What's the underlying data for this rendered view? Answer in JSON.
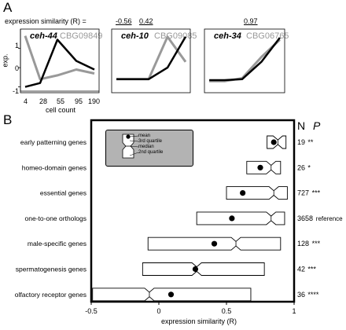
{
  "panel_a": {
    "letter": "A",
    "similarity_label": "expression similarity (R) =",
    "y_label": "exp.",
    "x_label": "cell count",
    "x_ticks": [
      "4",
      "28",
      "55",
      "95",
      "190"
    ],
    "y_ticks": [
      "1",
      "0",
      "-1"
    ],
    "plots": [
      {
        "r_value": "-0.56",
        "gene_black": "ceh-44",
        "gene_gray": "CBG09849",
        "black": [
          -1.0,
          -0.8,
          1.45,
          0.35,
          -0.1
        ],
        "gray": [
          1.65,
          -0.6,
          -0.4,
          -0.1,
          -0.3
        ]
      },
      {
        "r_value": "0.42",
        "gene_black": "ceh-10",
        "gene_gray": "CBG09085",
        "black": [
          -0.6,
          -0.6,
          -0.6,
          0.0,
          1.6
        ],
        "gray": [
          -0.6,
          -0.6,
          -0.6,
          1.6,
          0.3
        ]
      },
      {
        "r_value": "0.97",
        "gene_black": "ceh-34",
        "gene_gray": "CBG06765",
        "black": [
          -0.65,
          -0.65,
          -0.6,
          0.3,
          1.55
        ],
        "gray": [
          -0.7,
          -0.7,
          -0.55,
          0.55,
          1.45
        ]
      }
    ],
    "colors": {
      "black_line": "#000000",
      "gray_line": "#999999"
    }
  },
  "panel_b": {
    "letter": "B",
    "n_header": "N",
    "p_header": "P",
    "x_label": "expression similarity (R)",
    "x_ticks": [
      "-0.5",
      "0",
      "0.5",
      "1"
    ],
    "legend": {
      "mean": "mean",
      "q3": "3rd quartile",
      "median": "median",
      "q2": "2nd quartile"
    },
    "colors": {
      "legend_bg": "#b3b3b3",
      "box_fill": "#ffffff",
      "stroke": "#000000"
    }
  },
  "chart_data": {
    "type": "box",
    "title": "",
    "xlabel": "expression similarity (R)",
    "xlim": [
      -0.5,
      1.0
    ],
    "categories": [
      "early patterning genes",
      "homeo-domain genes",
      "essential genes",
      "one-to-one orthologs",
      "male-specific genes",
      "spermatogenesis genes",
      "olfactory receptor genes"
    ],
    "q1": [
      0.8,
      0.65,
      0.5,
      0.28,
      -0.08,
      -0.12,
      -0.49
    ],
    "median": [
      0.88,
      0.83,
      0.85,
      0.83,
      0.57,
      0.28,
      -0.07
    ],
    "q3": [
      0.94,
      0.9,
      0.95,
      0.93,
      0.9,
      0.78,
      0.68
    ],
    "mean": [
      0.85,
      0.75,
      0.62,
      0.54,
      0.41,
      0.27,
      0.09
    ],
    "n": [
      "19",
      "26",
      "727",
      "3658",
      "128",
      "42",
      "36"
    ],
    "p": [
      "**",
      "*",
      "***",
      "reference",
      "***",
      "***",
      "****"
    ]
  }
}
